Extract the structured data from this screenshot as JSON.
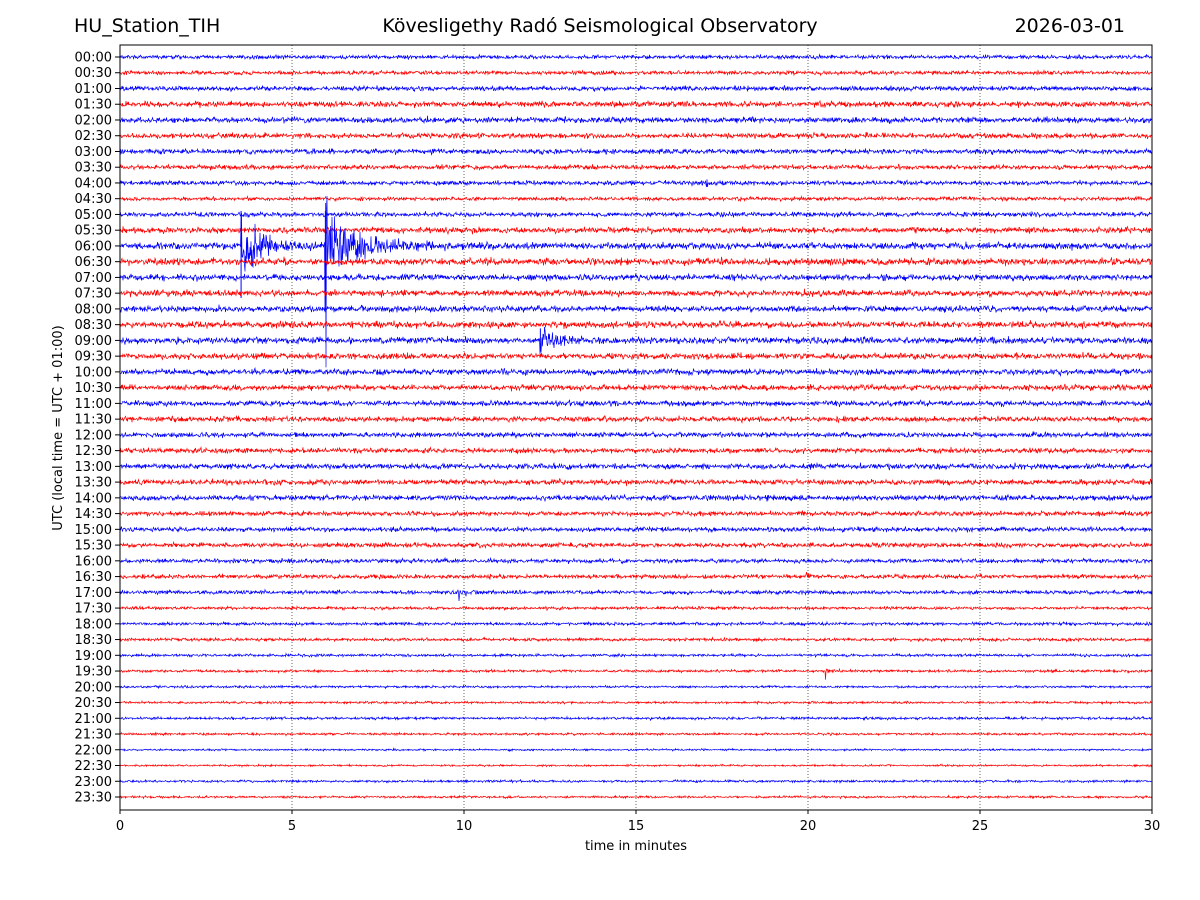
{
  "header": {
    "station": "HU_Station_TIH",
    "title": "Kövesligethy Radó Seismological Observatory",
    "date": "2026-03-01"
  },
  "chart_data": {
    "type": "line",
    "subtype": "helicorder",
    "xlabel": "time in minutes",
    "ylabel": "UTC (local time = UTC + 01:00)",
    "xlim": [
      0,
      30
    ],
    "xticks": [
      0,
      5,
      10,
      15,
      20,
      25,
      30
    ],
    "grid": "vertical dotted at x ticks",
    "colors": [
      "#0000ff",
      "#ff0000"
    ],
    "rows": [
      "00:00",
      "00:30",
      "01:00",
      "01:30",
      "02:00",
      "02:30",
      "03:00",
      "03:30",
      "04:00",
      "04:30",
      "05:00",
      "05:30",
      "06:00",
      "06:30",
      "07:00",
      "07:30",
      "08:00",
      "08:30",
      "09:00",
      "09:30",
      "10:00",
      "10:30",
      "11:00",
      "11:30",
      "12:00",
      "12:30",
      "13:00",
      "13:30",
      "14:00",
      "14:30",
      "15:00",
      "15:30",
      "16:00",
      "16:30",
      "17:00",
      "17:30",
      "18:00",
      "18:30",
      "19:00",
      "19:30",
      "20:00",
      "20:30",
      "21:00",
      "21:30",
      "22:00",
      "22:30",
      "23:00",
      "23:30"
    ],
    "noise_level": [
      1,
      1,
      1.2,
      1.5,
      1.5,
      1.4,
      1.3,
      1.2,
      1.2,
      1,
      1.2,
      1.5,
      1.8,
      1.8,
      1.6,
      1.6,
      1.6,
      1.7,
      1.7,
      1.6,
      1.5,
      1.5,
      1.4,
      1.4,
      1.3,
      1.3,
      1.4,
      1.4,
      1.4,
      1.2,
      1.2,
      1.2,
      1.1,
      1.1,
      1,
      0.8,
      0.8,
      0.8,
      0.7,
      0.7,
      0.6,
      0.6,
      0.7,
      0.6,
      0.5,
      0.5,
      0.6,
      0.6
    ],
    "events": [
      {
        "row": "06:00",
        "minute": 3.5,
        "amplitude": 35,
        "duration_min": 2.5
      },
      {
        "row": "06:00",
        "minute": 5.95,
        "amplitude": 35,
        "duration_min": 3.5
      },
      {
        "row": "09:00",
        "minute": 12.2,
        "amplitude": 12,
        "duration_min": 2.5
      },
      {
        "row": "04:00",
        "minute": 16.9,
        "amplitude": 3,
        "duration_min": 0.8
      },
      {
        "row": "17:00",
        "minute": 9.85,
        "amplitude": 5,
        "duration_min": 0.5
      },
      {
        "row": "16:30",
        "minute": 19.9,
        "amplitude": 3,
        "duration_min": 0.6
      },
      {
        "row": "16:00",
        "minute": 16.9,
        "amplitude": 3,
        "duration_min": 0.2
      },
      {
        "row": "08:30",
        "minute": 9.6,
        "amplitude": 3,
        "duration_min": 0.3
      },
      {
        "row": "19:30",
        "minute": 20.5,
        "amplitude": 2,
        "duration_min": 1.0
      },
      {
        "row": "14:00",
        "minute": 18.8,
        "amplitude": 2,
        "duration_min": 1.0
      }
    ]
  }
}
